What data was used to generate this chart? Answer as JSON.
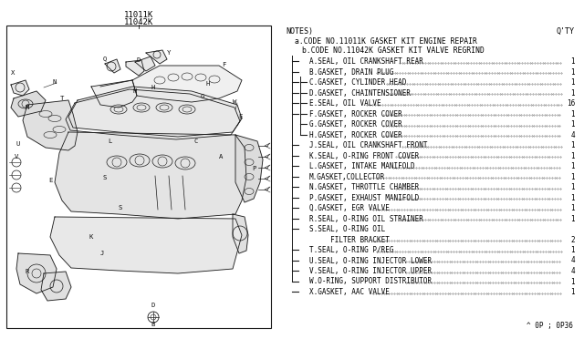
{
  "code1": "11011K",
  "code2": "11042K",
  "notes_header": "NOTES)",
  "qty_header": "Q'TY",
  "code_a": "a.CODE NO.11011K GASKET KIT ENGINE REPAIR",
  "code_b": "b.CODE NO.11042K GASKET KIT VALVE REGRIND",
  "parts": [
    {
      "id": "A",
      "desc": "SEAL, OIL CRANKSHAFT REAR",
      "qty": "1",
      "a": true,
      "b": false
    },
    {
      "id": "B",
      "desc": "GASKET, DRAIN PLUG",
      "qty": "1",
      "a": true,
      "b": false
    },
    {
      "id": "C",
      "desc": "GASKET, CYLINDER HEAD",
      "qty": "1",
      "a": true,
      "b": true
    },
    {
      "id": "D",
      "desc": "GASKET, CHAINTENSIONER",
      "qty": "1",
      "a": true,
      "b": true
    },
    {
      "id": "E",
      "desc": "SEAL, OIL VALVE",
      "qty": "16",
      "a": true,
      "b": true
    },
    {
      "id": "F",
      "desc": "GASKET, ROCKER COVER",
      "qty": "1",
      "a": true,
      "b": true
    },
    {
      "id": "G",
      "desc": "GASKET, ROCKER COVER",
      "qty": "1",
      "a": false,
      "b": true
    },
    {
      "id": "H",
      "desc": "GASKET, ROCKER COVER",
      "qty": "4",
      "a": false,
      "b": true
    },
    {
      "id": "J",
      "desc": "SEAL, OIL CRANKSHAFT FRONT",
      "qty": "1",
      "a": true,
      "b": false
    },
    {
      "id": "K",
      "desc": "SEAL, O-RING FRONT COVER",
      "qty": "1",
      "a": true,
      "b": false
    },
    {
      "id": "L",
      "desc": "GASKET, INTAKE MANIFOLD",
      "qty": "1",
      "a": true,
      "b": false
    },
    {
      "id": "M",
      "desc": "GASKET,COLLECTOR",
      "qty": "1",
      "a": true,
      "b": false
    },
    {
      "id": "N",
      "desc": "GASKET, THROTTLE CHAMBER",
      "qty": "1",
      "a": true,
      "b": false
    },
    {
      "id": "P",
      "desc": "GASKET, EXHAUST MANIFOLD",
      "qty": "1",
      "a": true,
      "b": false
    },
    {
      "id": "Q",
      "desc": "GASKET, EGR VALVE",
      "qty": "1",
      "a": true,
      "b": false
    },
    {
      "id": "R",
      "desc": "SEAL, O-RING OIL STRAINER",
      "qty": "1",
      "a": true,
      "b": false
    },
    {
      "id": "S",
      "desc": "SEAL, O-RING OIL",
      "qty": "",
      "a": true,
      "b": false
    },
    {
      "id": " ",
      "desc": "     FILTER BRACKET",
      "qty": "2",
      "a": false,
      "b": false
    },
    {
      "id": "T",
      "desc": "SEAL, O-RING P/REG",
      "qty": "1",
      "a": true,
      "b": false
    },
    {
      "id": "U",
      "desc": "SEAL, O-RING INJECTOR LOWER",
      "qty": "4",
      "a": true,
      "b": false
    },
    {
      "id": "V",
      "desc": "SEAL, O-RING INJECTOR UPPER",
      "qty": "4",
      "a": true,
      "b": false
    },
    {
      "id": "W",
      "desc": "O-RING, SUPPORT DISTRIBUTOR",
      "qty": "1",
      "a": true,
      "b": false
    },
    {
      "id": "X",
      "desc": "GASKET, AAC VALVE",
      "qty": "1",
      "a": true,
      "b": false
    }
  ],
  "footer": "^ 0P ; 0P36",
  "bg_color": "#ffffff",
  "text_color": "#000000",
  "line_color": "#000000",
  "font_size_notes": 6.0,
  "font_size_parts": 5.8,
  "font_size_code": 7.0
}
